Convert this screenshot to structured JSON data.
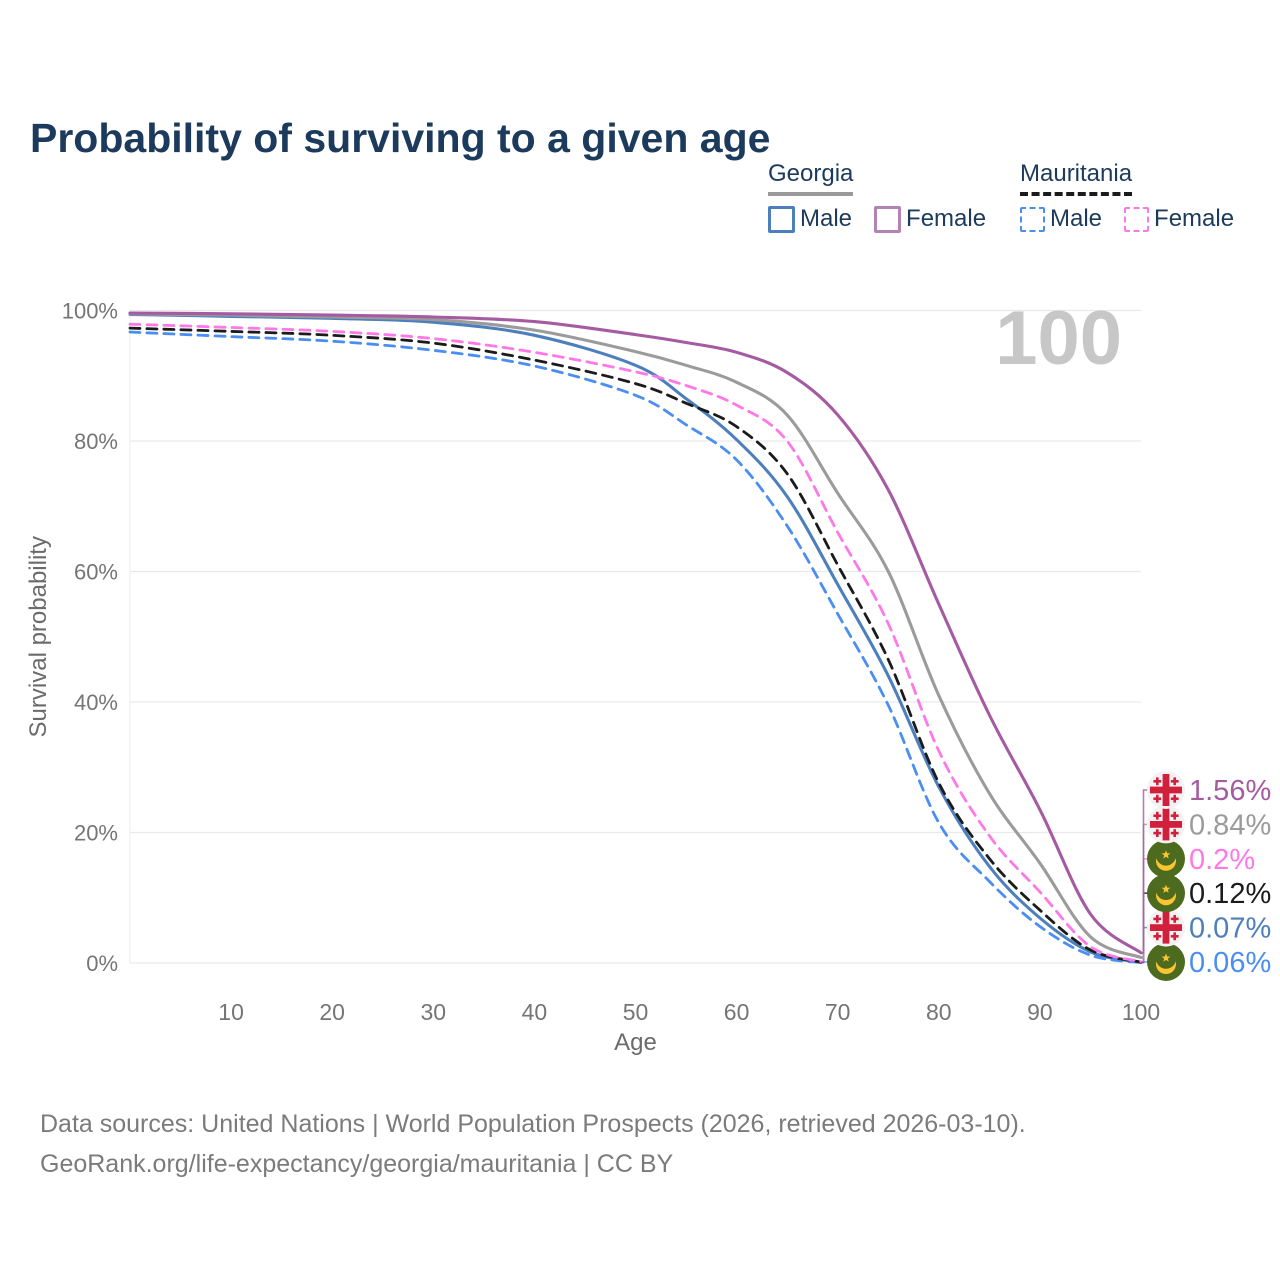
{
  "title": "Probability of surviving to a given age",
  "watermark": "100",
  "colors": {
    "title_text": "#1c3a5c",
    "axis_text": "#757575",
    "axis_title_text": "#6b6b6b",
    "grid": "#e9e9e9",
    "watermark": "#c7c7c7",
    "footer_text": "#7b7b7b",
    "georgia_flag_red": "#d0203c",
    "mauritania_flag_green": "#4c6b1f",
    "mauritania_flag_gold": "#fdc530"
  },
  "legend": {
    "groups": [
      {
        "label": "Georgia",
        "underline_style": "solid",
        "underline_color": "#9a9a9a",
        "items": [
          {
            "label": "Male",
            "color": "#4e7fbd",
            "dashed": false
          },
          {
            "label": "Female",
            "color": "#b283b4",
            "dashed": false
          }
        ]
      },
      {
        "label": "Mauritania",
        "underline_style": "dashed",
        "underline_color": "#1b1b1b",
        "items": [
          {
            "label": "Male",
            "color": "#4b8ef2",
            "dashed": true
          },
          {
            "label": "Female",
            "color": "#ff78e8",
            "dashed": true
          }
        ]
      }
    ]
  },
  "chart_data": {
    "type": "line",
    "xlabel": "Age",
    "ylabel": "Survival probability",
    "xlim": [
      0,
      100
    ],
    "ylim": [
      0,
      100
    ],
    "grid": "horizontal",
    "legend_position": "top-right",
    "x_ticks": [
      10,
      20,
      30,
      40,
      50,
      60,
      70,
      80,
      90,
      100
    ],
    "y_ticks": [
      0,
      20,
      40,
      60,
      80,
      100
    ],
    "y_tick_labels": [
      "0%",
      "20%",
      "40%",
      "60%",
      "80%",
      "100%"
    ],
    "x": [
      0,
      10,
      20,
      30,
      40,
      50,
      55,
      60,
      65,
      70,
      75,
      80,
      85,
      90,
      95,
      100
    ],
    "series": [
      {
        "name": "Georgia Female",
        "country": "Georgia",
        "sex": "Female",
        "color": "#a55ba1",
        "dashed": false,
        "flag": "georgia",
        "end_label": "1.56%",
        "values": [
          99.6,
          99.5,
          99.3,
          99.0,
          98.3,
          96.3,
          95.1,
          93.6,
          90.5,
          84.0,
          72.5,
          55.0,
          38.0,
          23.5,
          7.5,
          1.56
        ]
      },
      {
        "name": "Georgia",
        "country": "Georgia",
        "sex": "Both",
        "color": "#9b9b9b",
        "dashed": false,
        "flag": "georgia",
        "end_label": "0.84%",
        "values": [
          99.5,
          99.3,
          99.0,
          98.6,
          97.0,
          93.7,
          91.6,
          89.0,
          84.0,
          72.0,
          60.0,
          41.0,
          26.0,
          15.3,
          4.0,
          0.84
        ]
      },
      {
        "name": "Mauritania Female",
        "country": "Mauritania",
        "sex": "Female",
        "color": "#ff78e8",
        "dashed": true,
        "flag": "mauritania",
        "end_label": "0.2%",
        "values": [
          97.9,
          97.4,
          96.8,
          95.7,
          93.6,
          90.6,
          88.5,
          85.5,
          80.0,
          66.0,
          52.0,
          32.5,
          19.5,
          10.9,
          2.5,
          0.2
        ]
      },
      {
        "name": "Mauritania",
        "country": "Mauritania",
        "sex": "Both",
        "color": "#1b1b1b",
        "dashed": true,
        "flag": "mauritania",
        "end_label": "0.12%",
        "values": [
          97.3,
          96.8,
          96.2,
          95.0,
          92.4,
          88.8,
          85.8,
          82.2,
          75.0,
          61.0,
          46.5,
          27.6,
          16.0,
          8.1,
          2.0,
          0.12
        ]
      },
      {
        "name": "Georgia Male",
        "country": "Georgia",
        "sex": "Male",
        "color": "#4e7fbd",
        "dashed": false,
        "flag": "georgia",
        "end_label": "0.07%",
        "values": [
          99.4,
          99.1,
          98.8,
          98.2,
          96.2,
          91.6,
          86.5,
          80.2,
          71.5,
          58.0,
          44.0,
          27.0,
          14.8,
          6.9,
          1.7,
          0.07
        ]
      },
      {
        "name": "Mauritania Male",
        "country": "Mauritania",
        "sex": "Male",
        "color": "#4b8ef2",
        "dashed": true,
        "flag": "mauritania",
        "end_label": "0.06%",
        "values": [
          96.7,
          96.0,
          95.3,
          93.9,
          91.5,
          87.0,
          82.5,
          77.1,
          67.0,
          53.5,
          39.5,
          21.5,
          12.5,
          5.6,
          1.2,
          0.06
        ]
      }
    ]
  },
  "footer": {
    "line1": "Data sources: United Nations | World Population Prospects (2026, retrieved 2026-03-10).",
    "line2": "GeoRank.org/life-expectancy/georgia/mauritania | CC BY"
  }
}
